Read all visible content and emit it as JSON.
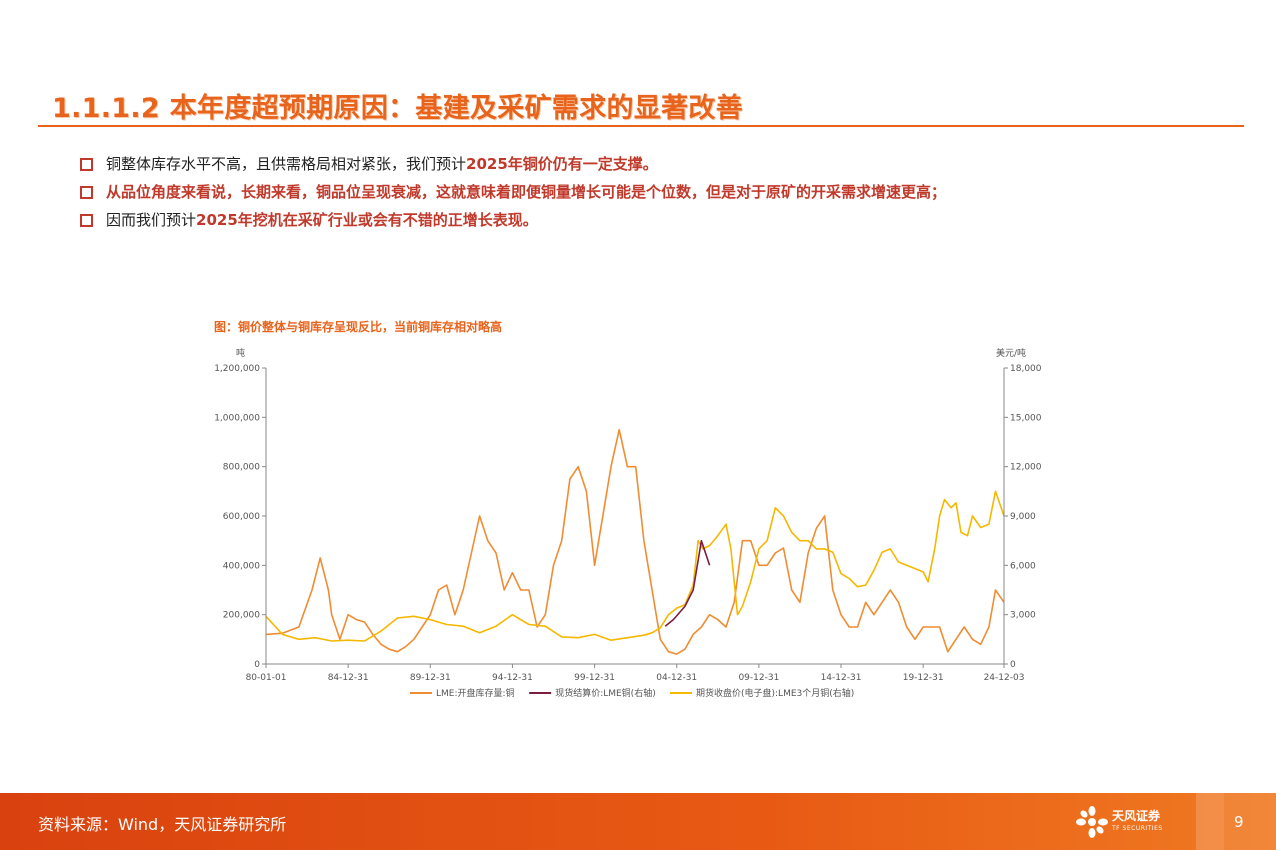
{
  "title": "1.1.1.2 本年度超预期原因：基建及采矿需求的显著改善",
  "bullets": [
    {
      "pre": "铜整体库存水平不高，且供需格局相对紧张，我们预计",
      "hl": "2025年铜价仍有一定支撑。"
    },
    {
      "text": "从品位角度来看说，长期来看，铜品位呈现衰减，这就意味着即便铜量增长可能是个位数，但是对于原矿的开采需求增速更高；"
    },
    {
      "pre": "因而我们预计",
      "hl": "2025年挖机在采矿行业或会有不错的正增长表现。"
    }
  ],
  "chart_title": "图：铜价整体与铜库存呈现反比，当前铜库存相对略高",
  "footer": {
    "source": "资料来源：Wind，天风证券研究所",
    "logo_cn": "天风证券",
    "logo_en": "TF SECURITIES",
    "page": "9"
  },
  "colors": {
    "accent": "#e8641c",
    "inventory": "#f08c32",
    "settle": "#7a1f3d",
    "close": "#f5b800"
  },
  "chart_data": {
    "type": "line",
    "left_unit": "吨",
    "right_unit": "美元/吨",
    "y_left": {
      "min": 0,
      "max": 1200000,
      "ticks": [
        "0",
        "200,000",
        "400,000",
        "600,000",
        "800,000",
        "1,000,000",
        "1,200,000"
      ]
    },
    "y_right": {
      "min": 0,
      "max": 18000,
      "ticks": [
        "0",
        "3,000",
        "6,000",
        "9,000",
        "12,000",
        "15,000",
        "18,000"
      ]
    },
    "x_range": [
      1980.0,
      2024.92
    ],
    "x_ticks": [
      {
        "label": "80-01-01",
        "x": 1980.0
      },
      {
        "label": "84-12-31",
        "x": 1985.0
      },
      {
        "label": "89-12-31",
        "x": 1990.0
      },
      {
        "label": "94-12-31",
        "x": 1995.0
      },
      {
        "label": "99-12-31",
        "x": 2000.0
      },
      {
        "label": "04-12-31",
        "x": 2005.0
      },
      {
        "label": "09-12-31",
        "x": 2010.0
      },
      {
        "label": "14-12-31",
        "x": 2015.0
      },
      {
        "label": "19-12-31",
        "x": 2020.0
      },
      {
        "label": "24-12-03",
        "x": 2024.92
      }
    ],
    "series": [
      {
        "name": "LME:开盘库存量:铜",
        "axis": "left",
        "x": [
          1980.0,
          1981.0,
          1982.0,
          1982.8,
          1983.3,
          1983.8,
          1984.0,
          1984.5,
          1985.0,
          1985.5,
          1986.0,
          1986.5,
          1987.0,
          1987.5,
          1988.0,
          1988.5,
          1989.0,
          1989.5,
          1990.0,
          1990.5,
          1991.0,
          1991.5,
          1992.0,
          1992.5,
          1993.0,
          1993.5,
          1994.0,
          1994.5,
          1995.0,
          1995.5,
          1996.0,
          1996.5,
          1997.0,
          1997.5,
          1998.0,
          1998.5,
          1999.0,
          1999.5,
          2000.0,
          2000.5,
          2001.0,
          2001.5,
          2002.0,
          2002.5,
          2003.0,
          2003.5,
          2004.0,
          2004.5,
          2005.0,
          2005.5,
          2006.0,
          2006.5,
          2007.0,
          2007.5,
          2008.0,
          2008.5,
          2009.0,
          2009.5,
          2010.0,
          2010.5,
          2011.0,
          2011.5,
          2012.0,
          2012.5,
          2013.0,
          2013.5,
          2014.0,
          2014.5,
          2015.0,
          2015.5,
          2016.0,
          2016.5,
          2017.0,
          2017.5,
          2018.0,
          2018.5,
          2019.0,
          2019.5,
          2020.0,
          2020.5,
          2021.0,
          2021.5,
          2022.0,
          2022.5,
          2023.0,
          2023.5,
          2024.0,
          2024.4,
          2024.92
        ],
        "values": [
          120000,
          125000,
          150000,
          300000,
          430000,
          300000,
          200000,
          100000,
          200000,
          180000,
          170000,
          120000,
          80000,
          60000,
          50000,
          70000,
          100000,
          150000,
          200000,
          300000,
          320000,
          200000,
          300000,
          450000,
          600000,
          500000,
          450000,
          300000,
          370000,
          300000,
          300000,
          150000,
          200000,
          400000,
          500000,
          750000,
          800000,
          700000,
          400000,
          600000,
          800000,
          950000,
          800000,
          800000,
          500000,
          300000,
          100000,
          50000,
          40000,
          60000,
          120000,
          150000,
          200000,
          180000,
          150000,
          250000,
          500000,
          500000,
          400000,
          400000,
          450000,
          470000,
          300000,
          250000,
          450000,
          550000,
          600000,
          300000,
          200000,
          150000,
          150000,
          250000,
          200000,
          250000,
          300000,
          250000,
          150000,
          100000,
          150000,
          150000,
          150000,
          50000,
          100000,
          150000,
          100000,
          80000,
          150000,
          300000,
          250000
        ]
      },
      {
        "name": "现货结算价:LME铜(右轴)",
        "axis": "right",
        "x": [
          2004.3,
          2004.8,
          2005.5,
          2006.0,
          2006.5,
          2007.0
        ],
        "values": [
          2300,
          2700,
          3500,
          4500,
          7500,
          6000
        ]
      },
      {
        "name": "期货收盘价(电子盘):LME3个月铜(右轴)",
        "axis": "right",
        "x": [
          1980.0,
          1981.0,
          1982.0,
          1983.0,
          1984.0,
          1985.0,
          1986.0,
          1987.0,
          1988.0,
          1989.0,
          1990.0,
          1991.0,
          1992.0,
          1993.0,
          1994.0,
          1995.0,
          1996.0,
          1997.0,
          1998.0,
          1999.0,
          2000.0,
          2001.0,
          2002.0,
          2003.0,
          2003.5,
          2004.0,
          2004.5,
          2005.0,
          2005.5,
          2006.0,
          2006.3,
          2006.6,
          2007.0,
          2007.5,
          2008.0,
          2008.3,
          2008.7,
          2009.0,
          2009.5,
          2010.0,
          2010.5,
          2011.0,
          2011.5,
          2012.0,
          2012.5,
          2013.0,
          2013.5,
          2014.0,
          2014.5,
          2015.0,
          2015.5,
          2016.0,
          2016.5,
          2017.0,
          2017.5,
          2018.0,
          2018.5,
          2019.0,
          2019.5,
          2020.0,
          2020.3,
          2020.7,
          2021.0,
          2021.3,
          2021.7,
          2022.0,
          2022.3,
          2022.7,
          2023.0,
          2023.5,
          2024.0,
          2024.4,
          2024.92
        ],
        "values": [
          2900,
          1800,
          1500,
          1600,
          1400,
          1450,
          1400,
          2000,
          2800,
          2900,
          2700,
          2400,
          2300,
          1900,
          2300,
          3000,
          2400,
          2300,
          1650,
          1600,
          1800,
          1450,
          1600,
          1750,
          1900,
          2200,
          3000,
          3400,
          3600,
          4800,
          7500,
          7000,
          7200,
          7800,
          8500,
          7000,
          3000,
          3500,
          5000,
          7000,
          7500,
          9500,
          9000,
          8000,
          7500,
          7500,
          7000,
          7000,
          6800,
          5500,
          5200,
          4700,
          4800,
          5700,
          6800,
          7000,
          6200,
          6000,
          5800,
          5600,
          5000,
          7000,
          9000,
          10000,
          9500,
          9800,
          8000,
          7800,
          9000,
          8300,
          8500,
          10500,
          9000
        ]
      }
    ]
  }
}
